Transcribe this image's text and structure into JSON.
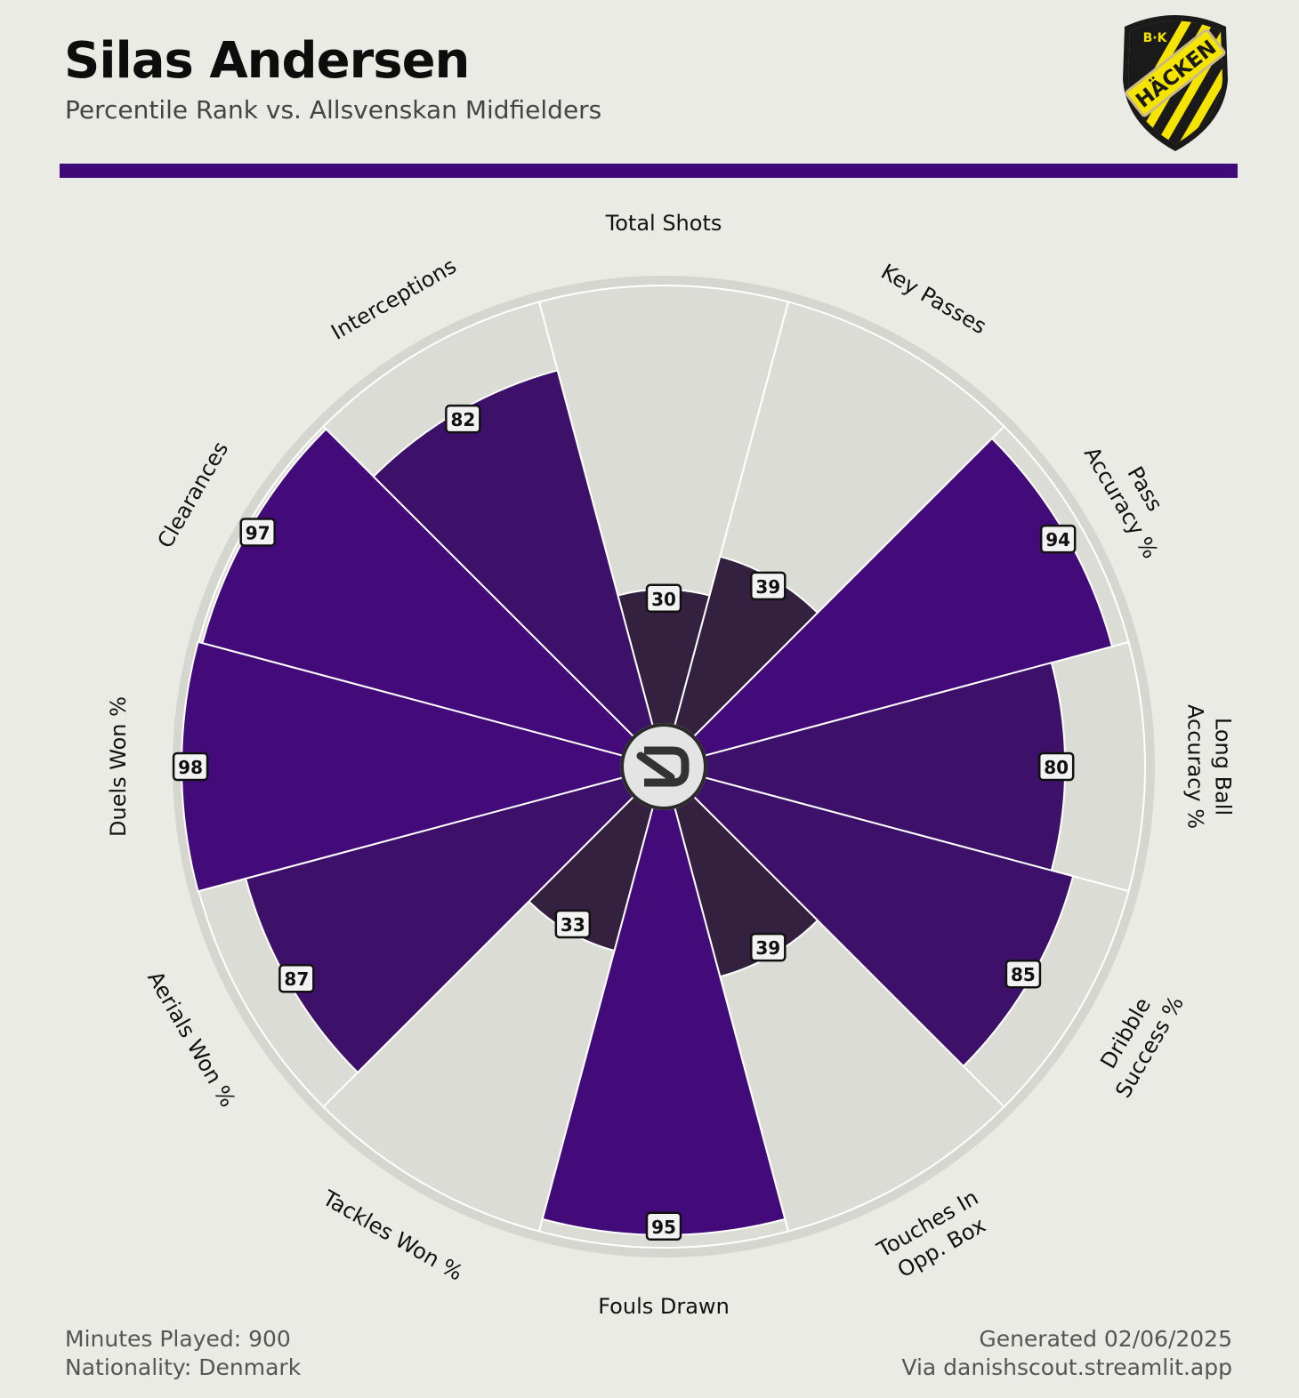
{
  "header": {
    "title": "Silas Andersen",
    "subtitle": "Percentile Rank vs. Allsvenskan Midfielders"
  },
  "badge": {
    "text_top": "B·K",
    "text_main": "HÄCKEN",
    "colors": {
      "black": "#1A1A1A",
      "yellow": "#F5E400",
      "border": "#C9B98A"
    }
  },
  "footer": {
    "minutes": "Minutes Played: 900",
    "nationality": "Nationality: Denmark",
    "generated": "Generated 02/06/2025",
    "via": "Via danishscout.streamlit.app"
  },
  "colors": {
    "background": "#EBEBE6",
    "accent": "#3F0A78",
    "slice_bg": "#DCDCD6",
    "outer_ring": "#D6D6D0",
    "tier_high": "#430B7A",
    "tier_mid": "#3D1169",
    "tier_low": "#33213F"
  },
  "chart_data": {
    "type": "polar-bar",
    "title": "Silas Andersen",
    "subtitle": "Percentile Rank vs. Allsvenskan Midfielders",
    "rlim": [
      0,
      100
    ],
    "categories": [
      "Total Shots",
      "Key Passes",
      "Pass Accuracy %",
      "Long Ball Accuracy %",
      "Dribble Success %",
      "Touches In Opp. Box",
      "Fouls Drawn",
      "Tackles Won %",
      "Aerials Won %",
      "Duels Won %",
      "Clearances",
      "Interceptions"
    ],
    "axis_labels": [
      [
        "Total Shots"
      ],
      [
        "Key Passes"
      ],
      [
        "Pass",
        "Accuracy %"
      ],
      [
        "Long Ball",
        "Accuracy %"
      ],
      [
        "Dribble",
        "Success %"
      ],
      [
        "Touches In",
        "Opp. Box"
      ],
      [
        "Fouls Drawn"
      ],
      [
        "Tackles Won %"
      ],
      [
        "Aerials Won %"
      ],
      [
        "Duels Won %"
      ],
      [
        "Clearances"
      ],
      [
        "Interceptions"
      ]
    ],
    "values": [
      30,
      39,
      94,
      80,
      85,
      39,
      95,
      33,
      87,
      98,
      97,
      82
    ]
  }
}
